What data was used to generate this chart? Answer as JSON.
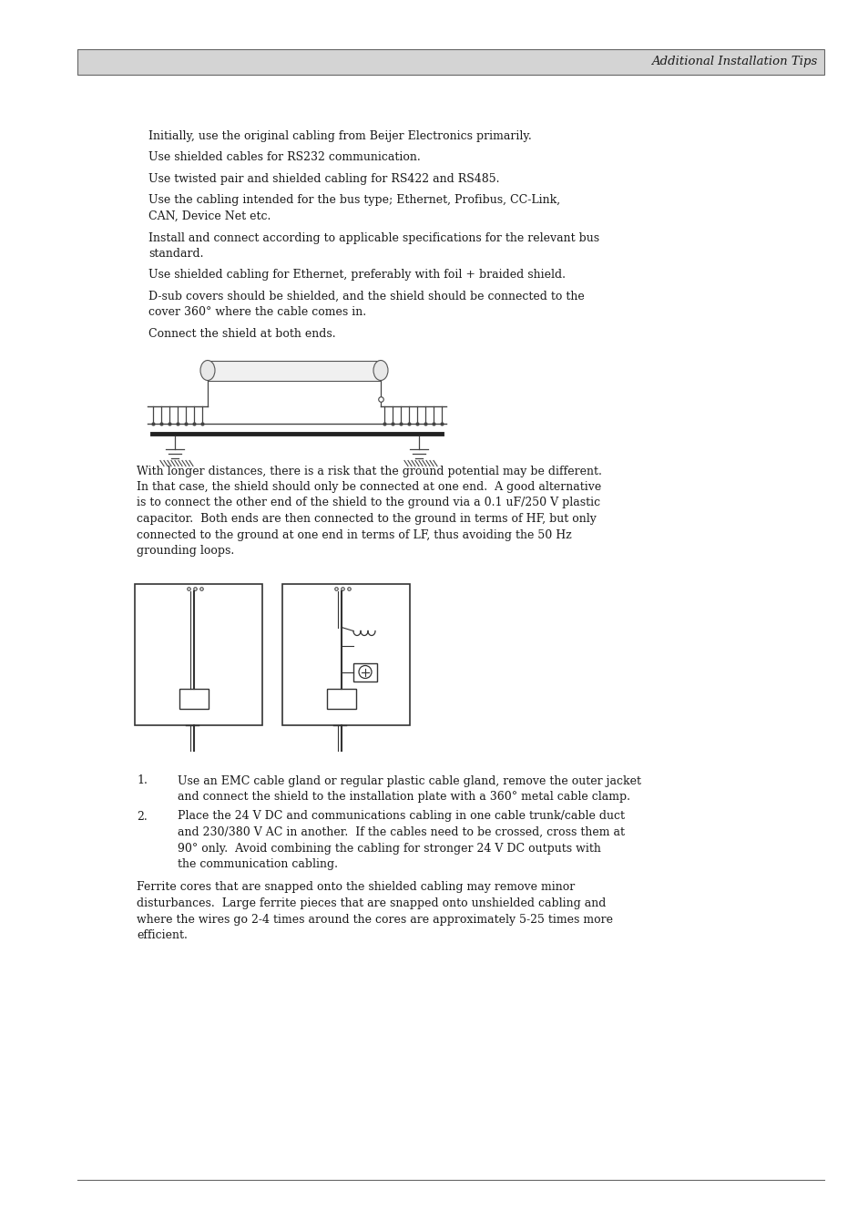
{
  "bg_color": "#ffffff",
  "header_bg": "#d4d4d4",
  "header_text": "Additional Installation Tips",
  "header_font_size": 9.5,
  "body_font_size": 9.0,
  "text_color": "#1a1a1a",
  "paragraph1_lines": [
    "Initially, use the original cabling from Beijer Electronics primarily.",
    "Use shielded cables for RS232 communication.",
    "Use twisted pair and shielded cabling for RS422 and RS485.",
    "Use the cabling intended for the bus type; Ethernet, Profibus, CC-Link,",
    "CAN, Device Net etc.",
    "Install and connect according to applicable specifications for the relevant bus",
    "standard.",
    "Use shielded cabling for Ethernet, preferably with foil + braided shield.",
    "D-sub covers should be shielded, and the shield should be connected to the",
    "cover 360° where the cable comes in.",
    "Connect the shield at both ends."
  ],
  "paragraph1_groups": [
    0,
    1,
    2,
    3,
    3,
    4,
    4,
    5,
    6,
    6,
    7
  ],
  "paragraph2_lines": [
    "With longer distances, there is a risk that the ground potential may be different.",
    "In that case, the shield should only be connected at one end.  A good alternative",
    "is to connect the other end of the shield to the ground via a 0.1 uF/250 V plastic",
    "capacitor.  Both ends are then connected to the ground in terms of HF, but only",
    "connected to the ground at one end in terms of LF, thus avoiding the 50 Hz",
    "grounding loops."
  ],
  "list_items": [
    [
      "Use an EMC cable gland or regular plastic cable gland, remove the outer jacket",
      "and connect the shield to the installation plate with a 360° metal cable clamp."
    ],
    [
      "Place the 24 V DC and communications cabling in one cable trunk/cable duct",
      "and 230/380 V AC in another.  If the cables need to be crossed, cross them at",
      "90° only.  Avoid combining the cabling for stronger 24 V DC outputs with",
      "the communication cabling."
    ]
  ],
  "paragraph3_lines": [
    "Ferrite cores that are snapped onto the shielded cabling may remove minor",
    "disturbances.  Large ferrite pieces that are snapped onto unshielded cabling and",
    "where the wires go 2-4 times around the cores are approximately 5-25 times more",
    "efficient."
  ]
}
